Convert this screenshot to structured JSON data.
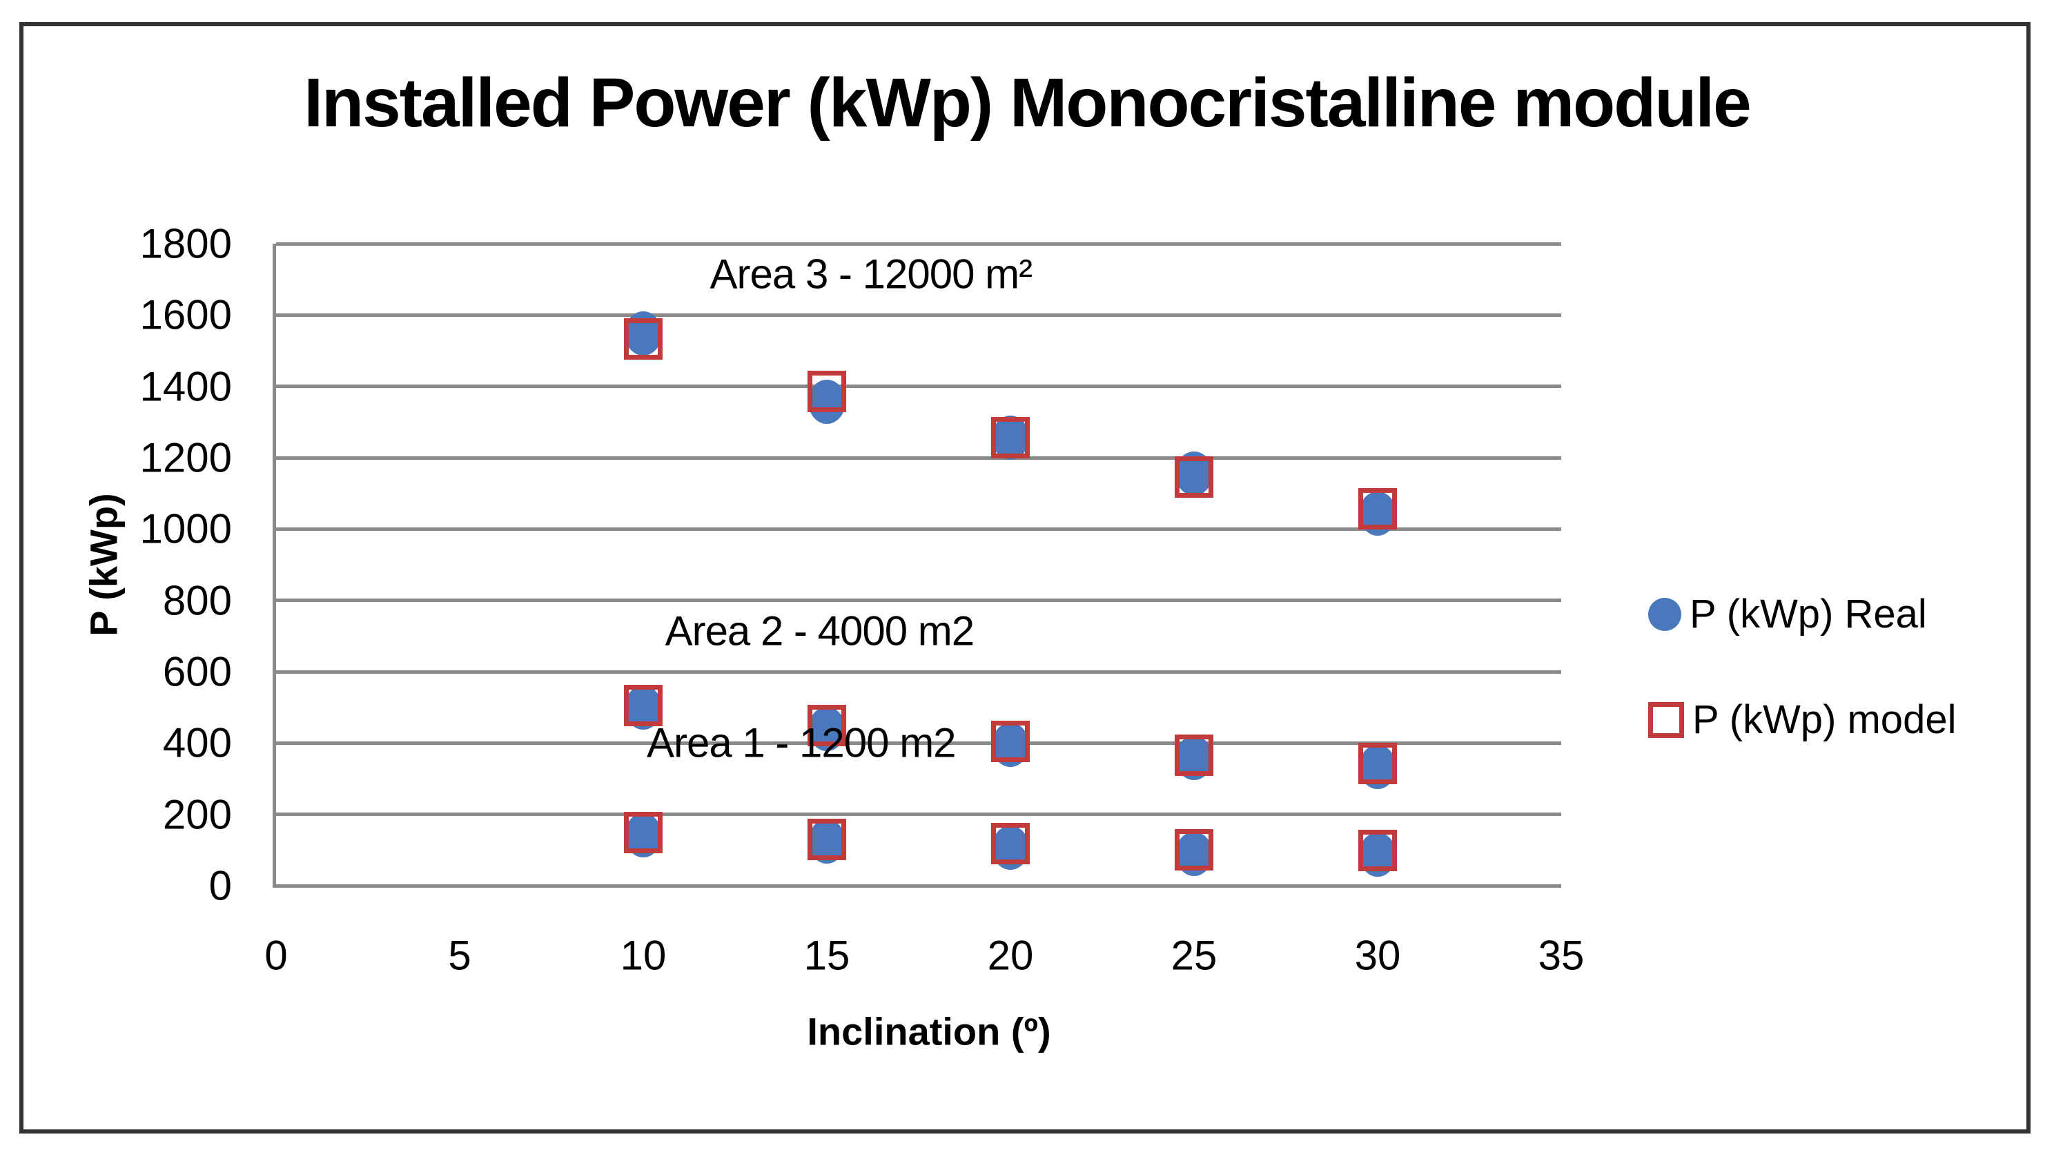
{
  "chart_data": {
    "type": "scatter",
    "title": "Installed Power (kWp) Monocristalline module",
    "xlabel": "Inclination (º)",
    "ylabel": "P (kWp)",
    "xlim": [
      0,
      35
    ],
    "ylim": [
      0,
      1800
    ],
    "xticks": [
      0,
      5,
      10,
      15,
      20,
      25,
      30,
      35
    ],
    "yticks": [
      0,
      200,
      400,
      600,
      800,
      1000,
      1200,
      1400,
      1600,
      1800
    ],
    "grid": "horizontal",
    "legend_position": "right-middle",
    "series": [
      {
        "name": "P (kWp) Real",
        "marker": "filled-circle",
        "color": "#4A78BC",
        "points": [
          [
            10,
            1548
          ],
          [
            15,
            1357
          ],
          [
            20,
            1257
          ],
          [
            25,
            1155
          ],
          [
            30,
            1043
          ],
          [
            10,
            500
          ],
          [
            15,
            440
          ],
          [
            20,
            395
          ],
          [
            25,
            358
          ],
          [
            30,
            333
          ],
          [
            10,
            142
          ],
          [
            15,
            124
          ],
          [
            20,
            107
          ],
          [
            25,
            90
          ],
          [
            30,
            87
          ]
        ]
      },
      {
        "name": "P (kWp) model",
        "marker": "open-square",
        "color": "#C23B3C",
        "points": [
          [
            10,
            1533
          ],
          [
            15,
            1386
          ],
          [
            20,
            1257
          ],
          [
            25,
            1145
          ],
          [
            30,
            1056
          ],
          [
            10,
            505
          ],
          [
            15,
            450
          ],
          [
            20,
            405
          ],
          [
            25,
            366
          ],
          [
            30,
            342
          ],
          [
            10,
            150
          ],
          [
            15,
            130
          ],
          [
            20,
            119
          ],
          [
            25,
            101
          ],
          [
            30,
            98
          ]
        ]
      }
    ],
    "annotations": [
      {
        "text": "Area 3 - 12000 m²",
        "x": 16.2,
        "y": 1715
      },
      {
        "text": "Area 2 - 4000 m2",
        "x": 14.8,
        "y": 714
      },
      {
        "text": "Area 1 - 1200 m2",
        "x": 14.3,
        "y": 400
      }
    ]
  },
  "colors": {
    "background": "#FFFFFF",
    "frame": "#333333",
    "grid": "#8A8A8A",
    "text": "#000000",
    "series_real": "#4A78BC",
    "series_model": "#C23B3C"
  }
}
